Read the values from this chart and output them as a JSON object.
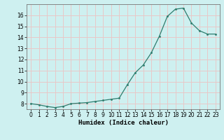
{
  "title": "",
  "xlabel": "Humidex (Indice chaleur)",
  "x_values": [
    0,
    1,
    2,
    3,
    4,
    5,
    6,
    7,
    8,
    9,
    10,
    11,
    12,
    13,
    14,
    15,
    16,
    17,
    18,
    19,
    20,
    21,
    22,
    23
  ],
  "y_values": [
    8.0,
    7.9,
    7.75,
    7.65,
    7.75,
    8.0,
    8.05,
    8.1,
    8.2,
    8.3,
    8.4,
    8.5,
    9.7,
    10.8,
    11.5,
    12.6,
    14.1,
    15.9,
    16.55,
    16.65,
    15.3,
    14.6,
    14.3,
    14.3
  ],
  "ylim_min": 7.5,
  "ylim_max": 17.0,
  "yticks": [
    8,
    9,
    10,
    11,
    12,
    13,
    14,
    15,
    16
  ],
  "xticks": [
    0,
    1,
    2,
    3,
    4,
    5,
    6,
    7,
    8,
    9,
    10,
    11,
    12,
    13,
    14,
    15,
    16,
    17,
    18,
    19,
    20,
    21,
    22,
    23
  ],
  "line_color": "#2e7d6e",
  "marker_color": "#2e7d6e",
  "bg_color": "#cef0f0",
  "grid_color": "#e8c8c8",
  "tick_label_fontsize": 5.5,
  "xlabel_fontsize": 6.5
}
